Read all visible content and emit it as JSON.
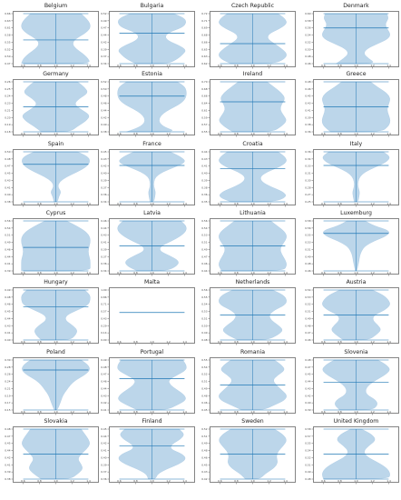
{
  "chart_data": {
    "type": "violin",
    "panels": [
      {
        "title": "Belgium",
        "widths": [
          0.95,
          0.9,
          0.75,
          0.55,
          0.45,
          0.55,
          0.8,
          0.95,
          0.95,
          0.85,
          0.7
        ],
        "ylim": [
          0.47,
          0.66
        ],
        "median": 0.56,
        "bottom_frac": 0.05
      },
      {
        "title": "Bulgaria",
        "widths": [
          0.45,
          0.7,
          0.85,
          0.95,
          0.75,
          0.45,
          0.35,
          0.5,
          0.85,
          0.95,
          0.9,
          0.6
        ],
        "ylim": [
          0.34,
          0.52
        ],
        "median": 0.45,
        "bottom_frac": 0.05
      },
      {
        "title": "Czech Republic",
        "widths": [
          0.6,
          0.9,
          0.95,
          0.8,
          0.6,
          0.4,
          0.45,
          0.75,
          0.95,
          0.9,
          0.7
        ],
        "ylim": [
          0.62,
          0.72
        ],
        "median": 0.66,
        "bottom_frac": 0.05
      },
      {
        "title": "Denmark",
        "widths": [
          0.55,
          0.35,
          0.2,
          0.3,
          0.6,
          0.9,
          0.95,
          0.85,
          0.8,
          0.9,
          0.85
        ],
        "ylim": [
          0.46,
          0.6
        ],
        "median": 0.56,
        "bottom_frac": 0.05
      },
      {
        "title": "Germany",
        "widths": [
          0.4,
          0.6,
          0.85,
          0.95,
          0.7,
          0.5,
          0.65,
          0.9,
          0.8,
          0.6
        ],
        "ylim": [
          0.18,
          0.26
        ],
        "median": 0.22,
        "bottom_frac": 0.05
      },
      {
        "title": "Estonia",
        "widths": [
          0.7,
          0.35,
          0.2,
          0.2,
          0.3,
          0.5,
          0.75,
          0.9,
          0.95,
          0.95,
          0.9,
          0.7
        ],
        "ylim": [
          0.38,
          0.52
        ],
        "median": 0.48,
        "bottom_frac": 0.05
      },
      {
        "title": "Ireland",
        "widths": [
          0.55,
          0.8,
          0.95,
          0.85,
          0.75,
          0.8,
          0.9,
          0.8,
          0.6,
          0.4
        ],
        "ylim": [
          0.55,
          0.7
        ],
        "median": 0.64,
        "bottom_frac": 0.05
      },
      {
        "title": "Greece",
        "widths": [
          0.7,
          0.9,
          0.95,
          0.9,
          0.85,
          0.9,
          0.95,
          0.85,
          0.6,
          0.4
        ],
        "ylim": [
          0.36,
          0.48
        ],
        "median": 0.42,
        "bottom_frac": 0.05
      },
      {
        "title": "Spain",
        "widths": [
          0.05,
          0.08,
          0.15,
          0.05,
          0.1,
          0.3,
          0.6,
          0.85,
          0.95,
          0.9,
          0.6
        ],
        "ylim": [
          0.38,
          0.5
        ],
        "median": 0.47,
        "bottom_frac": 0.05
      },
      {
        "title": "France",
        "widths": [
          0.05,
          0.08,
          0.1,
          0.05,
          0.05,
          0.1,
          0.3,
          0.65,
          0.95,
          0.8,
          0.5
        ],
        "ylim": [
          0.34,
          0.45
        ],
        "median": 0.42,
        "bottom_frac": 0.05
      },
      {
        "title": "Croatia",
        "widths": [
          0.6,
          0.95,
          0.85,
          0.5,
          0.25,
          0.2,
          0.4,
          0.75,
          0.95,
          0.9,
          0.7
        ],
        "ylim": [
          0.35,
          0.44
        ],
        "median": 0.41,
        "bottom_frac": 0.05
      },
      {
        "title": "Italy",
        "widths": [
          0.05,
          0.08,
          0.1,
          0.05,
          0.05,
          0.1,
          0.25,
          0.55,
          0.85,
          0.95,
          0.75
        ],
        "ylim": [
          0.25,
          0.36
        ],
        "median": 0.33,
        "bottom_frac": 0.05
      },
      {
        "title": "Cyprus",
        "widths": [
          0.95,
          0.95,
          0.95,
          0.9,
          0.9,
          0.95,
          0.95,
          0.85,
          0.6,
          0.3
        ],
        "ylim": [
          0.39,
          0.56
        ],
        "median": 0.47,
        "bottom_frac": 0.05
      },
      {
        "title": "Latvia",
        "widths": [
          0.4,
          0.7,
          0.75,
          0.5,
          0.2,
          0.25,
          0.55,
          0.8,
          0.95,
          0.95,
          0.8
        ],
        "ylim": [
          0.34,
          0.46
        ],
        "median": 0.4,
        "bottom_frac": 0.05
      },
      {
        "title": "Lithuania",
        "widths": [
          0.85,
          0.95,
          0.9,
          0.8,
          0.75,
          0.85,
          0.95,
          0.9,
          0.7,
          0.5
        ],
        "ylim": [
          0.44,
          0.56
        ],
        "median": 0.5,
        "bottom_frac": 0.05
      },
      {
        "title": "Luxemburg",
        "widths": [
          0.02,
          0.05,
          0.08,
          0.1,
          0.15,
          0.25,
          0.5,
          0.85,
          0.95,
          0.5,
          0.25
        ],
        "ylim": [
          0.46,
          0.58
        ],
        "median": 0.55,
        "bottom_frac": 0.05
      },
      {
        "title": "Hungary",
        "widths": [
          0.4,
          0.55,
          0.6,
          0.45,
          0.25,
          0.3,
          0.6,
          0.9,
          0.95,
          0.95,
          0.8
        ],
        "ylim": [
          0.4,
          0.49
        ],
        "median": 0.46,
        "bottom_frac": 0.05
      },
      {
        "title": "Malta",
        "widths": [],
        "ylim": [
          0.0,
          1.0
        ],
        "median": 0.55,
        "bottom_frac": 0.05
      },
      {
        "title": "Netherlands",
        "widths": [
          0.4,
          0.7,
          0.85,
          0.7,
          0.5,
          0.45,
          0.6,
          0.9,
          0.95,
          0.85,
          0.55
        ],
        "ylim": [
          0.48,
          0.56
        ],
        "median": 0.52,
        "bottom_frac": 0.05
      },
      {
        "title": "Austria",
        "widths": [
          0.35,
          0.55,
          0.7,
          0.6,
          0.45,
          0.5,
          0.8,
          0.95,
          0.9,
          0.75,
          0.45
        ],
        "ylim": [
          0.46,
          0.54
        ],
        "median": 0.5,
        "bottom_frac": 0.05
      },
      {
        "title": "Poland",
        "widths": [
          0.04,
          0.1,
          0.15,
          0.2,
          0.3,
          0.4,
          0.55,
          0.8,
          0.95,
          0.9,
          0.7
        ],
        "ylim": [
          0.15,
          0.3
        ],
        "median": 0.27,
        "bottom_frac": 0.05
      },
      {
        "title": "Portugal",
        "widths": [
          0.4,
          0.7,
          0.95,
          0.9,
          0.7,
          0.5,
          0.45,
          0.7,
          0.95,
          0.95,
          0.85
        ],
        "ylim": [
          0.41,
          0.49
        ],
        "median": 0.46,
        "bottom_frac": 0.05
      },
      {
        "title": "Romania",
        "widths": [
          0.3,
          0.6,
          0.9,
          0.95,
          0.8,
          0.65,
          0.55,
          0.7,
          0.9,
          0.8,
          0.6
        ],
        "ylim": [
          0.45,
          0.55
        ],
        "median": 0.5,
        "bottom_frac": 0.05
      },
      {
        "title": "Slovenia",
        "widths": [
          0.45,
          0.6,
          0.55,
          0.3,
          0.25,
          0.35,
          0.55,
          0.8,
          0.95,
          0.85,
          0.6
        ],
        "ylim": [
          0.39,
          0.48
        ],
        "median": 0.44,
        "bottom_frac": 0.05
      },
      {
        "title": "Slovakia",
        "widths": [
          0.4,
          0.6,
          0.75,
          0.7,
          0.6,
          0.7,
          0.85,
          0.95,
          0.9,
          0.8,
          0.7
        ],
        "ylim": [
          0.38,
          0.48
        ],
        "median": 0.43,
        "bottom_frac": 0.05
      },
      {
        "title": "Finland",
        "widths": [
          0.1,
          0.15,
          0.4,
          0.75,
          0.95,
          0.85,
          0.5,
          0.55,
          0.8,
          0.9,
          0.75
        ],
        "ylim": [
          0.36,
          0.45
        ],
        "median": 0.42,
        "bottom_frac": 0.05
      },
      {
        "title": "Sweden",
        "widths": [
          0.2,
          0.35,
          0.6,
          0.7,
          0.65,
          0.7,
          0.85,
          0.95,
          0.85,
          0.6
        ],
        "ylim": [
          0.42,
          0.52
        ],
        "median": 0.47,
        "bottom_frac": 0.05
      },
      {
        "title": "United Kingdom",
        "widths": [
          0.9,
          0.95,
          0.85,
          0.6,
          0.3,
          0.2,
          0.35,
          0.55,
          0.45,
          0.15
        ],
        "ylim": [
          0.48,
          0.58
        ],
        "median": 0.53,
        "bottom_frac": 0.05
      }
    ],
    "x_ticks": [
      "0.6",
      "0.8",
      "1.0",
      "1.2",
      "1.4"
    ],
    "violin_fill": "#bcd6ea",
    "median_color": "#1f77b4",
    "axes_color": "#333333"
  }
}
